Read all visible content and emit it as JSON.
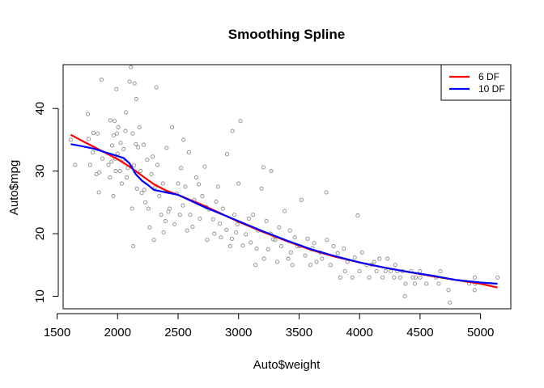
{
  "chart_data": {
    "type": "scatter",
    "title": "Smoothing Spline",
    "xlabel": "Auto$weight",
    "ylabel": "Auto$mpg",
    "xlim": [
      1550,
      5250
    ],
    "ylim": [
      8,
      47
    ],
    "xticks": [
      1500,
      2000,
      2500,
      3000,
      3500,
      4000,
      4500,
      5000
    ],
    "yticks": [
      10,
      20,
      30,
      40
    ],
    "grid": false,
    "legend_position": "top-right",
    "point_color": "#8c8c8c",
    "points": [
      [
        1613,
        35
      ],
      [
        1649,
        31
      ],
      [
        1755,
        39.1
      ],
      [
        1760,
        35.1
      ],
      [
        1773,
        31
      ],
      [
        1795,
        33
      ],
      [
        1800,
        36.1
      ],
      [
        1825,
        29.5
      ],
      [
        1835,
        36
      ],
      [
        1845,
        26.6
      ],
      [
        1850,
        29.8
      ],
      [
        1867,
        44.6
      ],
      [
        1875,
        32
      ],
      [
        1925,
        31
      ],
      [
        1937,
        29
      ],
      [
        1940,
        38.1
      ],
      [
        1950,
        31.5
      ],
      [
        1955,
        34.1
      ],
      [
        1965,
        26
      ],
      [
        1968,
        35.7
      ],
      [
        1975,
        38
      ],
      [
        1980,
        32
      ],
      [
        1985,
        30
      ],
      [
        1990,
        43.1
      ],
      [
        1995,
        36
      ],
      [
        2000,
        32.8
      ],
      [
        2005,
        37
      ],
      [
        2020,
        30
      ],
      [
        2025,
        34.5
      ],
      [
        2035,
        28
      ],
      [
        2045,
        31.9
      ],
      [
        2050,
        33.5
      ],
      [
        2065,
        36.4
      ],
      [
        2070,
        39.4
      ],
      [
        2075,
        29
      ],
      [
        2085,
        30.5
      ],
      [
        2100,
        44.3
      ],
      [
        2110,
        46.6
      ],
      [
        2120,
        24
      ],
      [
        2125,
        36
      ],
      [
        2130,
        18
      ],
      [
        2135,
        30.9
      ],
      [
        2140,
        44
      ],
      [
        2145,
        29.9
      ],
      [
        2150,
        34.3
      ],
      [
        2155,
        41.5
      ],
      [
        2160,
        27.2
      ],
      [
        2170,
        33.8
      ],
      [
        2180,
        37
      ],
      [
        2190,
        30
      ],
      [
        2200,
        26.5
      ],
      [
        2215,
        34.2
      ],
      [
        2220,
        27
      ],
      [
        2230,
        25
      ],
      [
        2245,
        31.8
      ],
      [
        2255,
        24
      ],
      [
        2265,
        21
      ],
      [
        2280,
        29.5
      ],
      [
        2290,
        32.3
      ],
      [
        2300,
        19
      ],
      [
        2310,
        27.4
      ],
      [
        2320,
        43.4
      ],
      [
        2330,
        31
      ],
      [
        2345,
        26
      ],
      [
        2360,
        23
      ],
      [
        2375,
        28
      ],
      [
        2380,
        20.2
      ],
      [
        2395,
        22
      ],
      [
        2405,
        33.7
      ],
      [
        2420,
        23.5
      ],
      [
        2430,
        24
      ],
      [
        2450,
        37
      ],
      [
        2470,
        21.5
      ],
      [
        2490,
        26.4
      ],
      [
        2500,
        28
      ],
      [
        2515,
        23
      ],
      [
        2525,
        30.5
      ],
      [
        2540,
        24.5
      ],
      [
        2545,
        35
      ],
      [
        2560,
        27.5
      ],
      [
        2575,
        20.5
      ],
      [
        2590,
        33
      ],
      [
        2600,
        23
      ],
      [
        2620,
        21.1
      ],
      [
        2635,
        25.4
      ],
      [
        2650,
        29
      ],
      [
        2670,
        27.9
      ],
      [
        2680,
        22.4
      ],
      [
        2700,
        26
      ],
      [
        2720,
        30.7
      ],
      [
        2735,
        24.2
      ],
      [
        2740,
        19
      ],
      [
        2755,
        23.9
      ],
      [
        2790,
        22.3
      ],
      [
        2800,
        20
      ],
      [
        2815,
        25.1
      ],
      [
        2830,
        27.5
      ],
      [
        2845,
        21.6
      ],
      [
        2855,
        19.4
      ],
      [
        2870,
        24
      ],
      [
        2900,
        20.6
      ],
      [
        2905,
        32.7
      ],
      [
        2930,
        18
      ],
      [
        2945,
        19.2
      ],
      [
        2950,
        36.4
      ],
      [
        2965,
        23
      ],
      [
        2980,
        20.2
      ],
      [
        2990,
        21.5
      ],
      [
        3000,
        28
      ],
      [
        3015,
        38
      ],
      [
        3035,
        18.1
      ],
      [
        3060,
        19.9
      ],
      [
        3085,
        22.4
      ],
      [
        3100,
        18.6
      ],
      [
        3120,
        23
      ],
      [
        3140,
        15
      ],
      [
        3150,
        17.6
      ],
      [
        3160,
        20.5
      ],
      [
        3190,
        27.2
      ],
      [
        3205,
        30.6
      ],
      [
        3210,
        16
      ],
      [
        3230,
        22
      ],
      [
        3245,
        17.5
      ],
      [
        3265,
        20
      ],
      [
        3270,
        30
      ],
      [
        3285,
        19.1
      ],
      [
        3302,
        19
      ],
      [
        3320,
        15.5
      ],
      [
        3335,
        21
      ],
      [
        3353,
        18
      ],
      [
        3380,
        23.6
      ],
      [
        3410,
        16
      ],
      [
        3425,
        20.5
      ],
      [
        3433,
        17
      ],
      [
        3445,
        15
      ],
      [
        3465,
        19.4
      ],
      [
        3485,
        18
      ],
      [
        3504,
        18
      ],
      [
        3520,
        25.4
      ],
      [
        3550,
        16.5
      ],
      [
        3570,
        19.2
      ],
      [
        3595,
        15
      ],
      [
        3610,
        17.7
      ],
      [
        3625,
        18.5
      ],
      [
        3645,
        15.5
      ],
      [
        3675,
        17
      ],
      [
        3690,
        16
      ],
      [
        3725,
        26.6
      ],
      [
        3730,
        19
      ],
      [
        3760,
        15
      ],
      [
        3785,
        18
      ],
      [
        3820,
        16.9
      ],
      [
        3840,
        13
      ],
      [
        3870,
        17.6
      ],
      [
        3880,
        14
      ],
      [
        3900,
        15.5
      ],
      [
        3940,
        13
      ],
      [
        3960,
        16.2
      ],
      [
        3985,
        22.9
      ],
      [
        4000,
        14
      ],
      [
        4020,
        17
      ],
      [
        4060,
        15
      ],
      [
        4080,
        13
      ],
      [
        4098,
        15
      ],
      [
        4120,
        15.5
      ],
      [
        4140,
        14
      ],
      [
        4165,
        16
      ],
      [
        4190,
        13
      ],
      [
        4215,
        14
      ],
      [
        4230,
        16
      ],
      [
        4257,
        14
      ],
      [
        4285,
        13
      ],
      [
        4295,
        15
      ],
      [
        4312,
        14
      ],
      [
        4335,
        13
      ],
      [
        4354,
        14
      ],
      [
        4375,
        10
      ],
      [
        4380,
        12
      ],
      [
        4425,
        14
      ],
      [
        4440,
        13
      ],
      [
        4457,
        12
      ],
      [
        4464,
        13
      ],
      [
        4499,
        14
      ],
      [
        4502,
        13
      ],
      [
        4552,
        12
      ],
      [
        4633,
        13
      ],
      [
        4654,
        12
      ],
      [
        4668,
        14
      ],
      [
        4735,
        11
      ],
      [
        4746,
        9
      ],
      [
        4906,
        12
      ],
      [
        4951,
        11
      ],
      [
        4952,
        13
      ],
      [
        4955,
        12
      ],
      [
        5140,
        13
      ]
    ],
    "series": [
      {
        "name": "6 DF",
        "color": "#ff0000",
        "x": [
          1613,
          1700,
          1800,
          1900,
          2000,
          2100,
          2200,
          2300,
          2400,
          2500,
          2600,
          2700,
          2800,
          2900,
          3000,
          3200,
          3400,
          3600,
          3800,
          4000,
          4200,
          4400,
          4600,
          4800,
          5000,
          5140
        ],
        "values": [
          35.8,
          34.9,
          33.9,
          32.9,
          31.9,
          30.7,
          29.3,
          27.9,
          26.9,
          26.2,
          25.4,
          24.6,
          23.7,
          22.8,
          21.9,
          20.3,
          18.8,
          17.4,
          16.3,
          15.4,
          14.6,
          13.9,
          13.2,
          12.6,
          12.0,
          11.4
        ]
      },
      {
        "name": "10 DF",
        "color": "#0000ff",
        "x": [
          1613,
          1700,
          1800,
          1900,
          2000,
          2050,
          2100,
          2150,
          2200,
          2250,
          2300,
          2350,
          2400,
          2500,
          2600,
          2700,
          2800,
          2900,
          3000,
          3200,
          3400,
          3600,
          3800,
          4000,
          4200,
          4400,
          4600,
          4800,
          5000,
          5140
        ],
        "values": [
          34.3,
          34.0,
          33.6,
          33.0,
          32.4,
          32.1,
          31.2,
          29.5,
          28.5,
          27.8,
          27.0,
          26.8,
          26.6,
          26.2,
          25.3,
          24.4,
          23.6,
          22.8,
          22.0,
          20.4,
          18.9,
          17.5,
          16.4,
          15.4,
          14.6,
          13.9,
          13.3,
          12.6,
          12.2,
          12.0
        ]
      }
    ]
  }
}
